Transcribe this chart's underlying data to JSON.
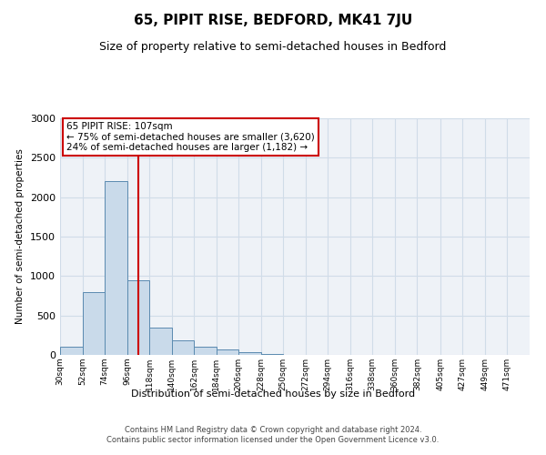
{
  "title": "65, PIPIT RISE, BEDFORD, MK41 7JU",
  "subtitle": "Size of property relative to semi-detached houses in Bedford",
  "xlabel": "Distribution of semi-detached houses by size in Bedford",
  "ylabel": "Number of semi-detached properties",
  "footer_line1": "Contains HM Land Registry data © Crown copyright and database right 2024.",
  "footer_line2": "Contains public sector information licensed under the Open Government Licence v3.0.",
  "property_size": 107,
  "annotation_line1": "65 PIPIT RISE: 107sqm",
  "annotation_line2": "← 75% of semi-detached houses are smaller (3,620)",
  "annotation_line3": "24% of semi-detached houses are larger (1,182) →",
  "bar_color": "#c9daea",
  "bar_edge_color": "#5a8ab0",
  "vline_color": "#cc0000",
  "annotation_box_edgecolor": "#cc0000",
  "grid_color": "#d0dce8",
  "plot_bg_color": "#eef2f7",
  "bin_labels": [
    "30sqm",
    "52sqm",
    "74sqm",
    "96sqm",
    "118sqm",
    "140sqm",
    "162sqm",
    "184sqm",
    "206sqm",
    "228sqm",
    "250sqm",
    "272sqm",
    "294sqm",
    "316sqm",
    "338sqm",
    "360sqm",
    "382sqm",
    "405sqm",
    "427sqm",
    "449sqm",
    "471sqm"
  ],
  "bin_left_edges": [
    30,
    52,
    74,
    96,
    118,
    140,
    162,
    184,
    206,
    228,
    250,
    272,
    294,
    316,
    338,
    360,
    382,
    405,
    427,
    449,
    471
  ],
  "bar_heights": [
    100,
    800,
    2200,
    950,
    350,
    185,
    100,
    65,
    38,
    10,
    5,
    4,
    3,
    2,
    2,
    1,
    0,
    0,
    0,
    0
  ],
  "ylim": [
    0,
    3000
  ],
  "yticks": [
    0,
    500,
    1000,
    1500,
    2000,
    2500,
    3000
  ],
  "title_fontsize": 11,
  "subtitle_fontsize": 9,
  "xlabel_fontsize": 8,
  "ylabel_fontsize": 7.5,
  "tick_fontsize": 6.5,
  "footer_fontsize": 6,
  "annotation_fontsize": 7.5
}
